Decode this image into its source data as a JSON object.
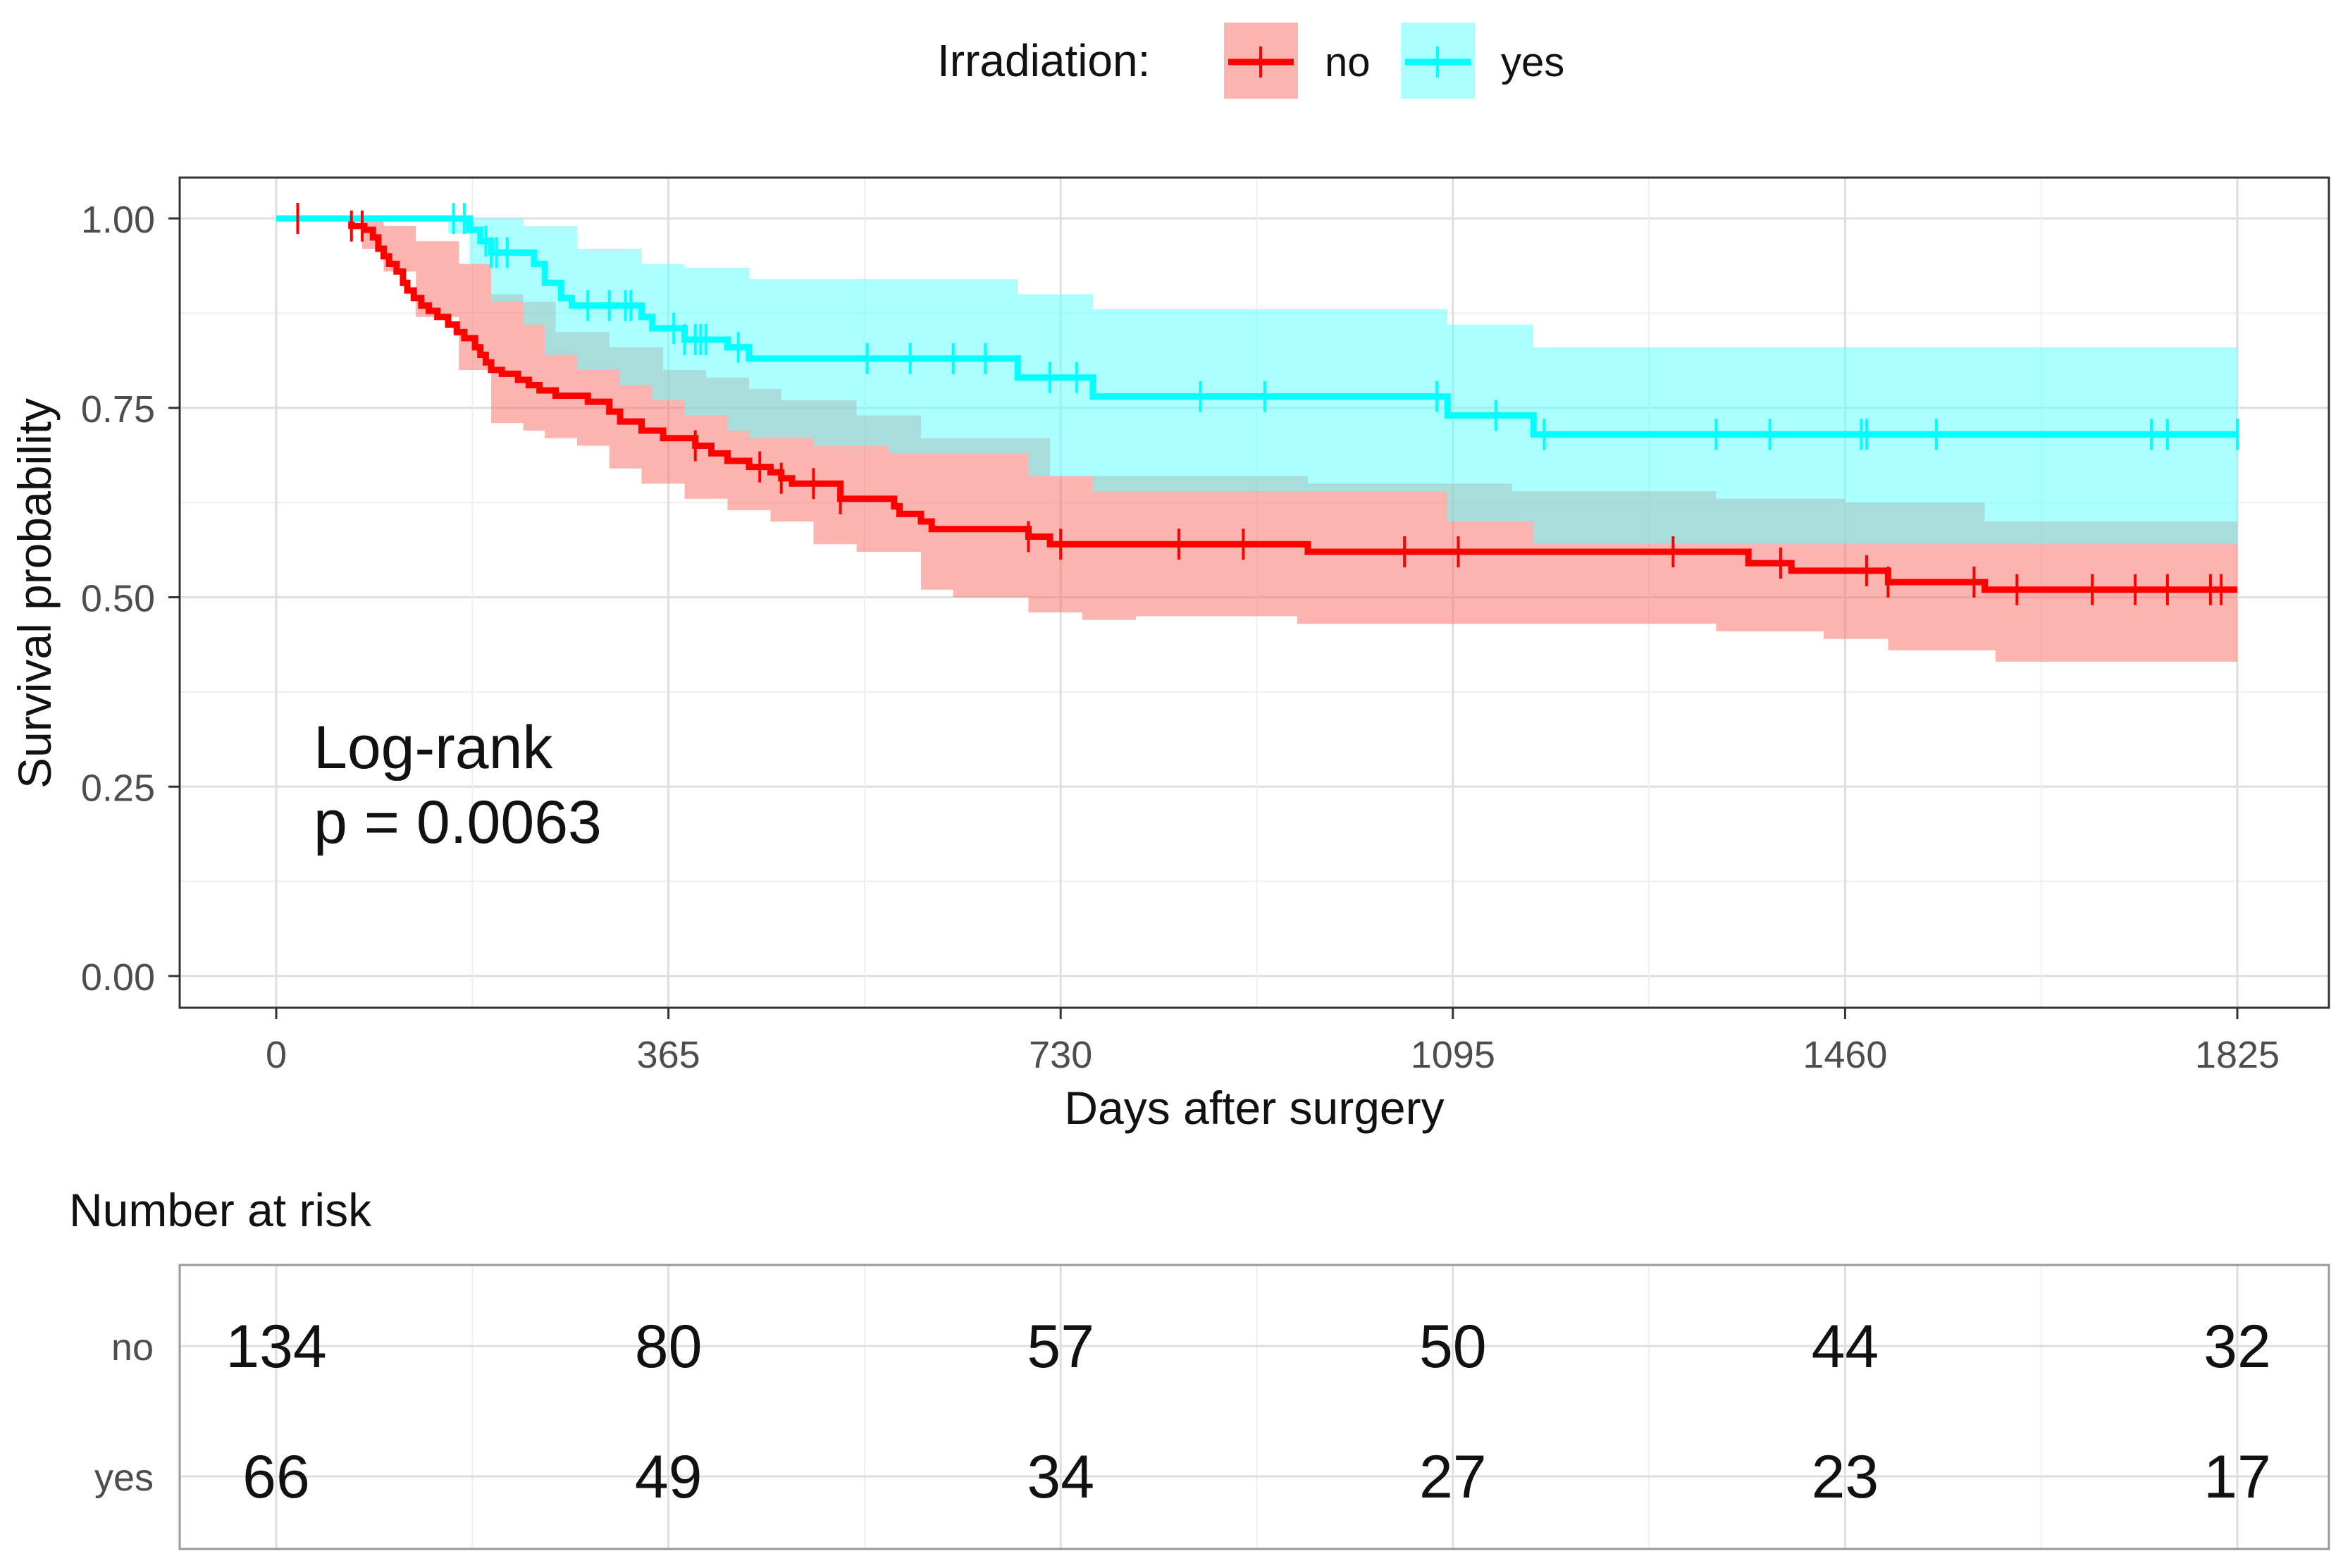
{
  "chart_data": {
    "type": "kaplan-meier",
    "legend_title": "Irradiation:",
    "legend_position": "top",
    "xlabel": "Days after surgery",
    "ylabel": "Survival probability",
    "xlim": [
      0,
      1825
    ],
    "ylim": [
      0,
      1
    ],
    "x_ticks": [
      0,
      365,
      730,
      1095,
      1460,
      1825
    ],
    "y_ticks": [
      0,
      0.25,
      0.5,
      0.75,
      1
    ],
    "y_tick_labels": [
      "0.00",
      "0.25",
      "0.50",
      "0.75",
      "1.00"
    ],
    "grid": true,
    "annotation": {
      "line1": "Log-rank",
      "line2": "p = 0.0063"
    },
    "series": [
      {
        "name": "no",
        "color": "#ff0000",
        "fill": "#f8766d",
        "steps": [
          [
            0,
            1
          ],
          [
            70,
            0.99
          ],
          [
            82,
            0.985
          ],
          [
            90,
            0.975
          ],
          [
            95,
            0.96
          ],
          [
            100,
            0.95
          ],
          [
            105,
            0.94
          ],
          [
            112,
            0.93
          ],
          [
            118,
            0.915
          ],
          [
            122,
            0.905
          ],
          [
            128,
            0.895
          ],
          [
            135,
            0.885
          ],
          [
            142,
            0.878
          ],
          [
            150,
            0.87
          ],
          [
            160,
            0.86
          ],
          [
            168,
            0.85
          ],
          [
            175,
            0.842
          ],
          [
            185,
            0.83
          ],
          [
            190,
            0.82
          ],
          [
            195,
            0.81
          ],
          [
            200,
            0.8
          ],
          [
            210,
            0.795
          ],
          [
            225,
            0.787
          ],
          [
            235,
            0.78
          ],
          [
            245,
            0.773
          ],
          [
            260,
            0.766
          ],
          [
            290,
            0.758
          ],
          [
            310,
            0.745
          ],
          [
            320,
            0.732
          ],
          [
            340,
            0.72
          ],
          [
            360,
            0.71
          ],
          [
            390,
            0.7
          ],
          [
            405,
            0.69
          ],
          [
            420,
            0.68
          ],
          [
            440,
            0.672
          ],
          [
            460,
            0.665
          ],
          [
            470,
            0.657
          ],
          [
            480,
            0.65
          ],
          [
            525,
            0.63
          ],
          [
            575,
            0.62
          ],
          [
            580,
            0.61
          ],
          [
            600,
            0.6
          ],
          [
            610,
            0.59
          ],
          [
            700,
            0.58
          ],
          [
            720,
            0.57
          ],
          [
            960,
            0.56
          ],
          [
            1370,
            0.545
          ],
          [
            1410,
            0.535
          ],
          [
            1500,
            0.52
          ],
          [
            1590,
            0.51
          ],
          [
            1825,
            0.51
          ]
        ],
        "lower": [
          [
            0,
            1
          ],
          [
            80,
            0.96
          ],
          [
            100,
            0.93
          ],
          [
            130,
            0.87
          ],
          [
            170,
            0.8
          ],
          [
            200,
            0.73
          ],
          [
            230,
            0.72
          ],
          [
            250,
            0.71
          ],
          [
            280,
            0.7
          ],
          [
            310,
            0.67
          ],
          [
            340,
            0.65
          ],
          [
            380,
            0.63
          ],
          [
            420,
            0.615
          ],
          [
            460,
            0.6
          ],
          [
            500,
            0.57
          ],
          [
            540,
            0.56
          ],
          [
            600,
            0.51
          ],
          [
            630,
            0.5
          ],
          [
            700,
            0.48
          ],
          [
            750,
            0.47
          ],
          [
            800,
            0.475
          ],
          [
            950,
            0.465
          ],
          [
            1150,
            0.465
          ],
          [
            1340,
            0.455
          ],
          [
            1440,
            0.445
          ],
          [
            1500,
            0.43
          ],
          [
            1600,
            0.415
          ],
          [
            1825,
            0.415
          ]
        ],
        "upper": [
          [
            0,
            1
          ],
          [
            80,
            1
          ],
          [
            100,
            0.99
          ],
          [
            130,
            0.97
          ],
          [
            170,
            0.94
          ],
          [
            200,
            0.9
          ],
          [
            230,
            0.89
          ],
          [
            260,
            0.85
          ],
          [
            310,
            0.83
          ],
          [
            360,
            0.8
          ],
          [
            400,
            0.79
          ],
          [
            440,
            0.775
          ],
          [
            470,
            0.76
          ],
          [
            540,
            0.74
          ],
          [
            600,
            0.71
          ],
          [
            720,
            0.66
          ],
          [
            960,
            0.65
          ],
          [
            1150,
            0.64
          ],
          [
            1340,
            0.63
          ],
          [
            1460,
            0.625
          ],
          [
            1590,
            0.6
          ],
          [
            1825,
            0.6
          ]
        ],
        "censor_times": [
          20,
          70,
          80,
          390,
          450,
          470,
          500,
          525,
          700,
          730,
          840,
          900,
          1050,
          1100,
          1300,
          1400,
          1480,
          1500,
          1580,
          1620,
          1690,
          1730,
          1760,
          1800,
          1810
        ]
      },
      {
        "name": "yes",
        "color": "#00ffff",
        "fill": "#66ffff",
        "steps": [
          [
            0,
            1
          ],
          [
            180,
            0.985
          ],
          [
            190,
            0.97
          ],
          [
            200,
            0.955
          ],
          [
            240,
            0.94
          ],
          [
            250,
            0.915
          ],
          [
            265,
            0.895
          ],
          [
            275,
            0.885
          ],
          [
            340,
            0.87
          ],
          [
            350,
            0.855
          ],
          [
            380,
            0.84
          ],
          [
            420,
            0.83
          ],
          [
            440,
            0.815
          ],
          [
            690,
            0.79
          ],
          [
            760,
            0.765
          ],
          [
            1090,
            0.74
          ],
          [
            1170,
            0.715
          ],
          [
            1825,
            0.715
          ]
        ],
        "lower": [
          [
            0,
            1
          ],
          [
            160,
            0.98
          ],
          [
            180,
            0.94
          ],
          [
            200,
            0.89
          ],
          [
            230,
            0.86
          ],
          [
            250,
            0.82
          ],
          [
            280,
            0.8
          ],
          [
            320,
            0.78
          ],
          [
            350,
            0.76
          ],
          [
            380,
            0.74
          ],
          [
            420,
            0.72
          ],
          [
            440,
            0.71
          ],
          [
            500,
            0.7
          ],
          [
            570,
            0.69
          ],
          [
            620,
            0.69
          ],
          [
            700,
            0.66
          ],
          [
            760,
            0.64
          ],
          [
            1090,
            0.6
          ],
          [
            1170,
            0.57
          ],
          [
            1825,
            0.57
          ]
        ],
        "upper": [
          [
            0,
            1
          ],
          [
            170,
            1
          ],
          [
            200,
            1
          ],
          [
            230,
            0.99
          ],
          [
            280,
            0.96
          ],
          [
            340,
            0.94
          ],
          [
            380,
            0.935
          ],
          [
            440,
            0.92
          ],
          [
            690,
            0.9
          ],
          [
            760,
            0.88
          ],
          [
            1090,
            0.86
          ],
          [
            1170,
            0.83
          ],
          [
            1825,
            0.82
          ]
        ],
        "censor_times": [
          165,
          175,
          195,
          200,
          205,
          215,
          290,
          310,
          325,
          330,
          370,
          380,
          390,
          395,
          400,
          430,
          550,
          590,
          630,
          660,
          720,
          745,
          860,
          920,
          1080,
          1135,
          1180,
          1340,
          1390,
          1475,
          1480,
          1545,
          1745,
          1760,
          1825
        ]
      }
    ],
    "risk_table": {
      "title": "Number at risk",
      "times": [
        0,
        365,
        730,
        1095,
        1460,
        1825
      ],
      "rows": [
        {
          "name": "no",
          "values": [
            134,
            80,
            57,
            50,
            44,
            32
          ]
        },
        {
          "name": "yes",
          "values": [
            66,
            49,
            34,
            27,
            23,
            17
          ]
        }
      ]
    }
  }
}
